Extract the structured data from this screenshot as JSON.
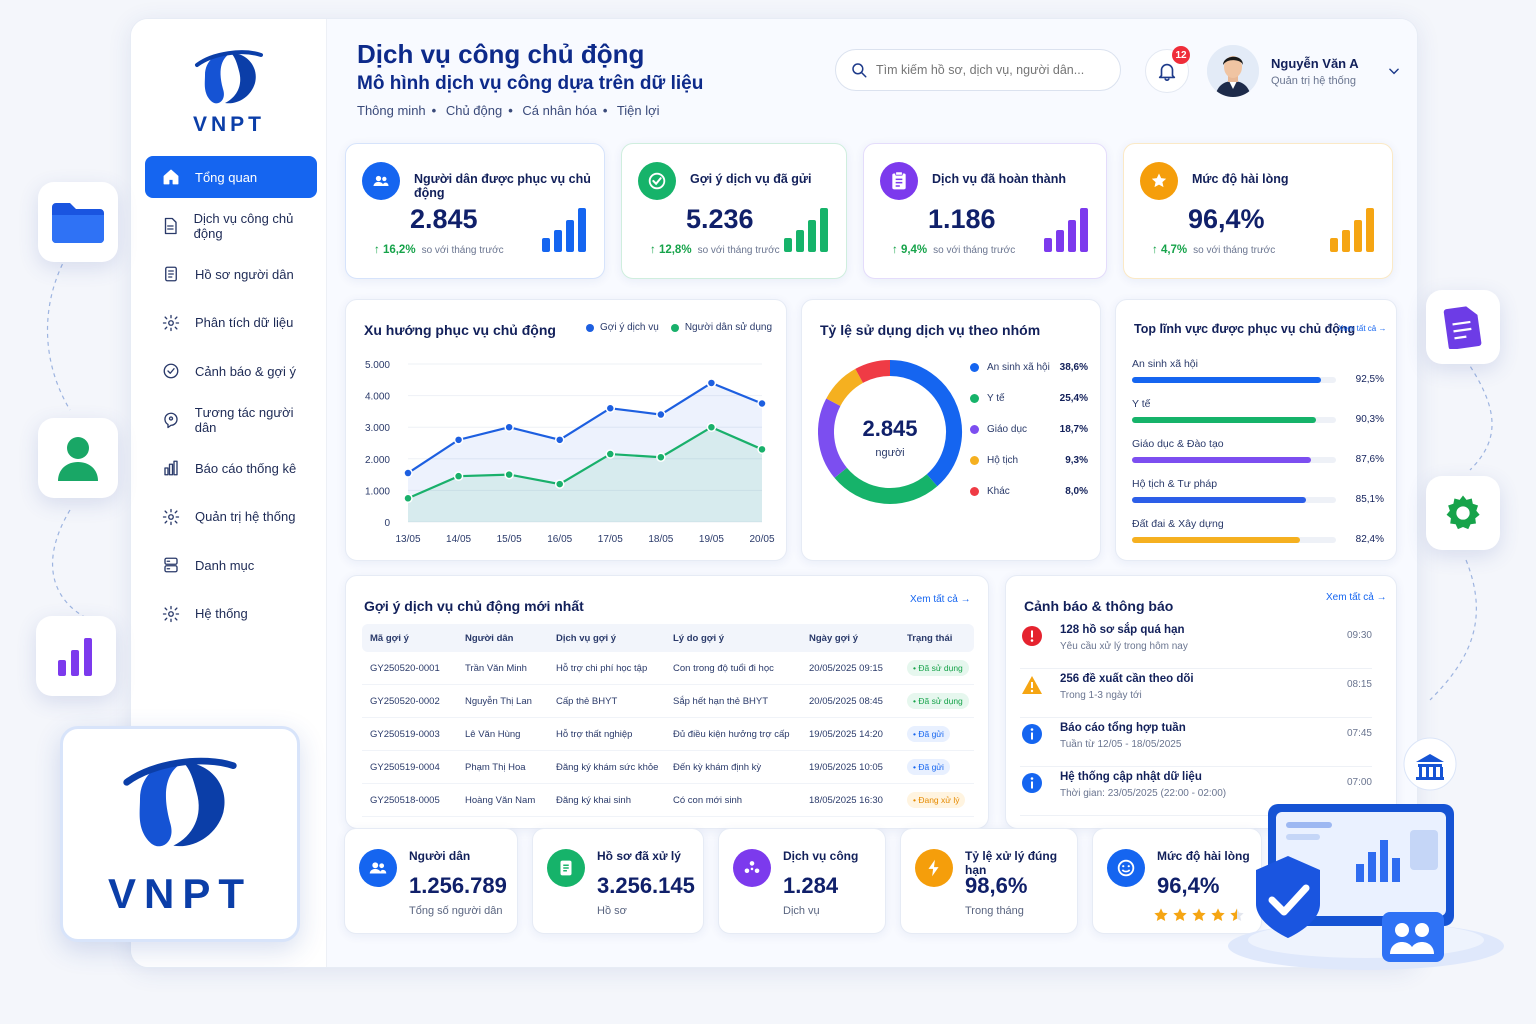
{
  "brand": {
    "name": "VNPT",
    "color": "#0b3ea8"
  },
  "sidebar": {
    "items": [
      {
        "label": "Tổng quan",
        "icon": "home-icon",
        "active": true
      },
      {
        "label": "Dịch vụ công chủ động",
        "icon": "document-icon"
      },
      {
        "label": "Hồ sơ người dân",
        "icon": "file-list-icon"
      },
      {
        "label": "Phân tích dữ liệu",
        "icon": "gear-icon"
      },
      {
        "label": "Cảnh báo & gợi ý",
        "icon": "check-circle-icon"
      },
      {
        "label": "Tương tác người dân",
        "icon": "chat-icon"
      },
      {
        "label": "Báo cáo thống kê",
        "icon": "bar-chart-icon"
      },
      {
        "label": "Quản trị hệ thống",
        "icon": "gear-icon"
      },
      {
        "label": "Danh mục",
        "icon": "server-icon"
      },
      {
        "label": "Hệ thống",
        "icon": "gear-icon"
      }
    ]
  },
  "header": {
    "title": "Dịch vụ công chủ động",
    "subtitle": "Mô hình dịch vụ công dựa trên dữ liệu",
    "tags": [
      "Thông minh",
      "Chủ động",
      "Cá nhân hóa",
      "Tiện lợi"
    ],
    "search_placeholder": "Tìm kiếm hồ sơ, dịch vụ, người dân...",
    "notif_count": "12",
    "user_name": "Nguyễn Văn A",
    "user_role": "Quản trị hệ thống"
  },
  "kpis": [
    {
      "label": "Người dân được phục vụ chủ động",
      "value": "2.845",
      "delta": "↑ 16,2%",
      "note": "so với tháng trước",
      "color": "#1565f0"
    },
    {
      "label": "Gợi ý dịch vụ đã gửi",
      "value": "5.236",
      "delta": "↑ 12,8%",
      "note": "so với tháng trước",
      "color": "#16b36a"
    },
    {
      "label": "Dịch vụ đã hoàn thành",
      "value": "1.186",
      "delta": "↑ 9,4%",
      "note": "so với tháng trước",
      "color": "#7c3aed"
    },
    {
      "label": "Mức độ hài lòng",
      "value": "96,4%",
      "delta": "↑ 4,7%",
      "note": "so với tháng trước",
      "color": "#f59e0b"
    }
  ],
  "trend": {
    "title": "Xu hướng phục vụ chủ động",
    "legend": [
      "Gợi ý dịch vụ",
      "Người dân sử dụng"
    ]
  },
  "chart_data": [
    {
      "type": "line",
      "title": "Xu hướng phục vụ chủ động",
      "x": [
        "13/05",
        "14/05",
        "15/05",
        "16/05",
        "17/05",
        "18/05",
        "19/05",
        "20/05"
      ],
      "ylim": [
        0,
        5000
      ],
      "yticks": [
        "0",
        "1.000",
        "2.000",
        "3.000",
        "4.000",
        "5.000"
      ],
      "series": [
        {
          "name": "Gợi ý dịch vụ",
          "color": "#1d5fe0",
          "values": [
            1550,
            2600,
            3000,
            2600,
            3600,
            3400,
            4400,
            3750
          ]
        },
        {
          "name": "Người dân sử dụng",
          "color": "#19b06b",
          "values": [
            750,
            1450,
            1500,
            1200,
            2150,
            2050,
            3000,
            2300
          ]
        }
      ]
    },
    {
      "type": "pie",
      "title": "Tỷ lệ sử dụng dịch vụ theo nhóm",
      "center_value": "2.845",
      "center_label": "người",
      "categories": [
        "An sinh xã hội",
        "Y tế",
        "Giáo dục",
        "Hộ tịch",
        "Khác"
      ],
      "values": [
        38.6,
        25.4,
        18.7,
        9.3,
        8.0
      ],
      "labels": [
        "38,6%",
        "25,4%",
        "18,7%",
        "9,3%",
        "8,0%"
      ],
      "colors": [
        "#1565f0",
        "#16b36a",
        "#7c4ef0",
        "#f5b020",
        "#ef3b45"
      ]
    },
    {
      "type": "bar",
      "title": "Top lĩnh vực được phục vụ chủ động",
      "categories": [
        "An sinh xã hội",
        "Y tế",
        "Giáo dục & Đào tạo",
        "Hộ tịch & Tư pháp",
        "Đất đai & Xây dựng"
      ],
      "values": [
        92.5,
        90.3,
        87.6,
        85.1,
        82.4
      ],
      "labels": [
        "92,5%",
        "90,3%",
        "87,6%",
        "85,1%",
        "82,4%"
      ],
      "colors": [
        "#1565f0",
        "#16b36a",
        "#7c4ef0",
        "#2c5ee8",
        "#f5b020"
      ]
    }
  ],
  "donut": {
    "title": "Tỷ lệ sử dụng dịch vụ theo nhóm"
  },
  "top": {
    "title": "Top lĩnh vực được phục vụ chủ động",
    "see_all": "Xem tất cả →"
  },
  "table": {
    "title": "Gợi ý dịch vụ chủ động mới nhất",
    "see_all": "Xem tất cả →",
    "columns": [
      "Mã gợi ý",
      "Người dân",
      "Dịch vụ gợi ý",
      "Lý do gợi ý",
      "Ngày gợi ý",
      "Trạng thái"
    ],
    "rows": [
      [
        "GY250520-0001",
        "Trần Văn Minh",
        "Hỗ trợ chi phí học tập",
        "Con trong độ tuổi đi học",
        "20/05/2025 09:15",
        "• Đã sử dụng"
      ],
      [
        "GY250520-0002",
        "Nguyễn Thị Lan",
        "Cấp thẻ BHYT",
        "Sắp hết hạn thẻ BHYT",
        "20/05/2025 08:45",
        "• Đã sử dụng"
      ],
      [
        "GY250519-0003",
        "Lê Văn Hùng",
        "Hỗ trợ thất nghiệp",
        "Đủ điều kiện hưởng trợ cấp",
        "19/05/2025 14:20",
        "• Đã gửi"
      ],
      [
        "GY250519-0004",
        "Phạm Thị Hoa",
        "Đăng ký khám sức khỏe",
        "Đến kỳ khám định kỳ",
        "19/05/2025 10:05",
        "• Đã gửi"
      ],
      [
        "GY250518-0005",
        "Hoàng Văn Nam",
        "Đăng ký khai sinh",
        "Có con mới sinh",
        "18/05/2025 16:30",
        "• Đang xử lý"
      ]
    ]
  },
  "alerts": {
    "title": "Cảnh báo & thông báo",
    "see_all": "Xem tất cả →",
    "items": [
      {
        "title": "128 hồ sơ sắp quá hạn",
        "sub": "Yêu cầu xử lý trong hôm nay",
        "time": "09:30",
        "icon": "alert-red-icon"
      },
      {
        "title": "256 đề xuất cần theo dõi",
        "sub": "Trong 1-3 ngày tới",
        "time": "08:15",
        "icon": "warning-icon"
      },
      {
        "title": "Báo cáo tổng hợp tuần",
        "sub": "Tuần từ 12/05 - 18/05/2025",
        "time": "07:45",
        "icon": "info-icon"
      },
      {
        "title": "Hệ thống cập nhật dữ liệu",
        "sub": "Thời gian: 23/05/2025 (22:00 - 02:00)",
        "time": "07:00",
        "icon": "info-icon"
      }
    ]
  },
  "stats": [
    {
      "label": "Người dân",
      "value": "1.256.789",
      "sub": "Tổng số người dân",
      "color": "#1565f0"
    },
    {
      "label": "Hồ sơ đã xử lý",
      "value": "3.256.145",
      "sub": "Hồ sơ",
      "color": "#16b36a"
    },
    {
      "label": "Dịch vụ công",
      "value": "1.284",
      "sub": "Dịch vụ",
      "color": "#7c3aed"
    },
    {
      "label": "Tỷ lệ xử lý đúng hạn",
      "value": "98,6%",
      "sub": "Trong tháng",
      "color": "#f59e0b"
    },
    {
      "label": "Mức độ hài lòng",
      "value": "96,4%",
      "sub": "",
      "color": "#1565f0",
      "stars": 4.5
    }
  ]
}
